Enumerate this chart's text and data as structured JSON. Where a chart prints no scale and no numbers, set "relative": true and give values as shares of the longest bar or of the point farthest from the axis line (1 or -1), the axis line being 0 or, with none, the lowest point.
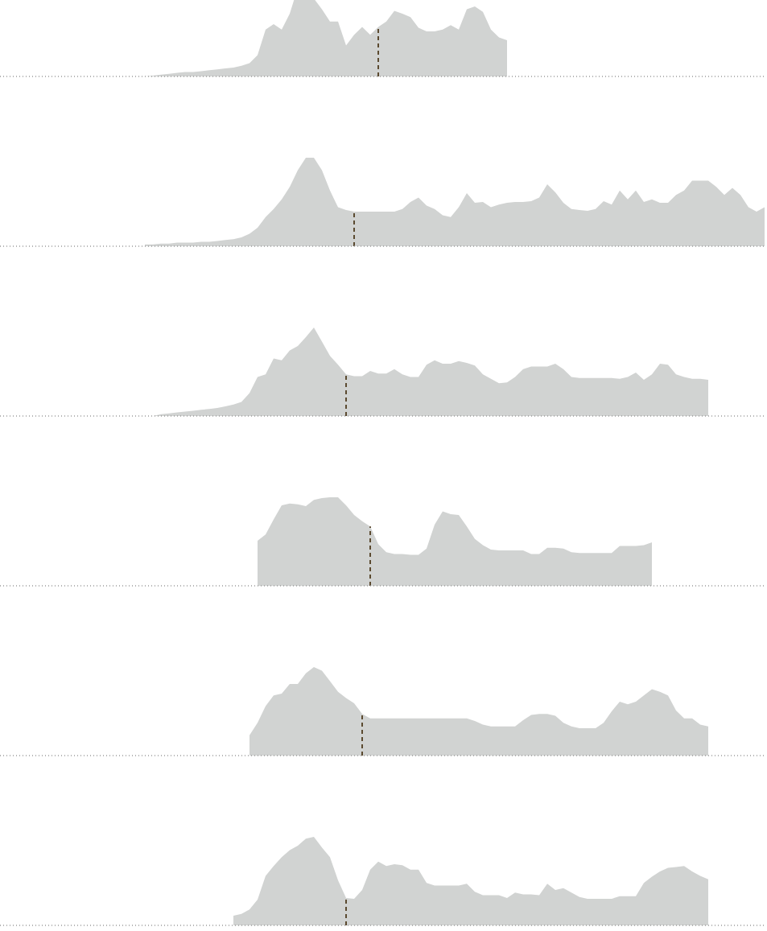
{
  "chart_data": [
    {
      "type": "area",
      "relative": true,
      "categories": [
        null,
        null,
        null,
        null,
        null,
        null,
        null,
        null,
        null,
        null,
        null,
        null,
        null,
        null,
        null,
        null,
        null,
        null,
        null,
        null,
        null,
        null,
        null,
        null,
        null,
        null,
        null,
        null,
        null,
        null,
        null,
        null,
        null,
        null,
        null,
        null,
        null,
        null,
        null,
        null,
        null,
        null,
        null,
        null,
        null,
        null,
        null,
        null,
        null,
        null,
        null,
        null,
        null,
        null,
        null,
        null,
        null,
        null,
        null,
        null,
        null,
        null,
        null,
        null,
        null,
        null,
        null,
        null,
        null,
        null,
        null,
        null,
        null,
        null,
        null,
        null,
        null,
        null,
        null,
        null,
        null,
        null,
        null,
        null,
        null,
        null,
        null,
        null,
        null,
        null,
        null,
        null,
        null,
        null,
        null,
        null
      ],
      "series": [
        {
          "color": "#d1d3d2",
          "values": [
            null,
            null,
            null,
            null,
            null,
            null,
            null,
            null,
            null,
            null,
            null,
            null,
            null,
            null,
            null,
            null,
            null,
            null,
            0,
            0.01,
            0.02,
            0.03,
            0.04,
            0.05,
            0.05,
            0.06,
            0.07,
            0.08,
            0.09,
            0.1,
            0.12,
            0.15,
            0.24,
            0.53,
            0.59,
            0.53,
            0.71,
            1,
            0.94,
            0.88,
            0.76,
            0.62,
            0.62,
            0.35,
            0.47,
            0.56,
            0.47,
            0.56,
            null,
            null,
            null,
            null,
            null,
            null,
            null,
            null,
            null,
            null,
            null,
            null,
            null,
            null,
            null,
            null,
            null,
            null,
            null,
            null,
            null,
            null,
            null,
            null,
            null,
            null,
            null,
            null,
            null,
            null,
            null,
            null,
            null,
            null,
            null,
            null,
            null,
            null,
            null,
            null,
            null,
            null,
            null,
            null,
            null,
            null,
            null,
            null
          ]
        },
        {
          "color": "#d1d3d2",
          "values": [
            null,
            null,
            null,
            null,
            null,
            null,
            null,
            null,
            null,
            null,
            null,
            null,
            null,
            null,
            null,
            null,
            null,
            null,
            null,
            null,
            null,
            null,
            null,
            null,
            null,
            null,
            null,
            null,
            null,
            null,
            null,
            null,
            null,
            null,
            null,
            null,
            null,
            null,
            null,
            null,
            null,
            null,
            null,
            null,
            null,
            null,
            null,
            0.56,
            0.62,
            0.74,
            0.71,
            0.67,
            0.55,
            0.51,
            0.51,
            0.53,
            0.58,
            0.53,
            0.76,
            0.79,
            0.73,
            0.53,
            0.44,
            0.41,
            null,
            null,
            null,
            null,
            null,
            null,
            null,
            null,
            null,
            null,
            null,
            null,
            null,
            null,
            null,
            null,
            null,
            null,
            null,
            null,
            null,
            null,
            null,
            null,
            null,
            null,
            null,
            null,
            null,
            null,
            null,
            null
          ]
        }
      ]
    },
    {
      "type": "area",
      "relative": true,
      "categories": [
        null,
        null,
        null,
        null,
        null,
        null,
        null,
        null,
        null,
        null,
        null,
        null,
        null,
        null,
        null,
        null,
        null,
        null,
        null,
        null,
        null,
        null,
        null,
        null,
        null,
        null,
        null,
        null,
        null,
        null,
        null,
        null,
        null,
        null,
        null,
        null,
        null,
        null,
        null,
        null,
        null,
        null,
        null,
        null,
        null,
        null,
        null,
        null,
        null,
        null,
        null,
        null,
        null,
        null,
        null,
        null,
        null,
        null,
        null,
        null,
        null,
        null,
        null,
        null,
        null,
        null,
        null,
        null,
        null,
        null,
        null,
        null,
        null,
        null,
        null,
        null,
        null,
        null,
        null,
        null,
        null,
        null,
        null,
        null,
        null,
        null,
        null,
        null,
        null,
        null,
        null,
        null,
        null,
        null,
        null,
        null
      ],
      "series": [
        {
          "color": "#d1d3d2",
          "values": [
            null,
            null,
            null,
            null,
            null,
            null,
            null,
            null,
            null,
            null,
            null,
            null,
            null,
            null,
            null,
            null,
            null,
            null,
            0.02,
            0.02,
            0.03,
            0.03,
            0.04,
            0.04,
            0.04,
            0.05,
            0.05,
            0.06,
            0.07,
            0.08,
            0.1,
            0.14,
            0.21,
            0.33,
            0.42,
            0.53,
            0.67,
            0.86,
            1,
            1,
            0.86,
            0.63,
            0.44,
            0.41,
            0.39,
            null,
            null,
            null,
            null,
            null,
            null,
            null,
            null,
            null,
            null,
            null,
            null,
            null,
            null,
            null,
            null,
            null,
            null,
            null,
            null,
            null,
            null,
            null,
            null,
            null,
            null,
            null,
            null,
            null,
            null,
            null,
            null,
            null,
            null,
            null,
            null,
            null,
            null,
            null,
            null,
            null,
            null,
            null,
            null,
            null,
            null,
            null,
            null,
            null,
            null,
            null
          ]
        },
        {
          "color": "#d1d3d2",
          "values": [
            null,
            null,
            null,
            null,
            null,
            null,
            null,
            null,
            null,
            null,
            null,
            null,
            null,
            null,
            null,
            null,
            null,
            null,
            null,
            null,
            null,
            null,
            null,
            null,
            null,
            null,
            null,
            null,
            null,
            null,
            null,
            null,
            null,
            null,
            null,
            null,
            null,
            null,
            null,
            null,
            null,
            null,
            null,
            null,
            0.39,
            0.39,
            0.39,
            0.39,
            0.39,
            0.39,
            0.42,
            0.5,
            0.55,
            0.46,
            0.42,
            0.35,
            0.33,
            0.44,
            0.6,
            0.49,
            0.5,
            0.44,
            0.47,
            0.49,
            0.5,
            0.5,
            0.51,
            0.55,
            0.7,
            0.61,
            0.49,
            0.42,
            0.41,
            0.4,
            0.42,
            0.51,
            0.47,
            0.63,
            0.53,
            0.63,
            0.5,
            0.53,
            0.49,
            0.49,
            0.58,
            0.63,
            0.74,
            0.74,
            0.74,
            0.67,
            0.58,
            0.66,
            0.58,
            0.44,
            0.39,
            0.44
          ]
        }
      ]
    },
    {
      "type": "area",
      "relative": true,
      "categories": [
        null,
        null,
        null,
        null,
        null,
        null,
        null,
        null,
        null,
        null,
        null,
        null,
        null,
        null,
        null,
        null,
        null,
        null,
        null,
        null,
        null,
        null,
        null,
        null,
        null,
        null,
        null,
        null,
        null,
        null,
        null,
        null,
        null,
        null,
        null,
        null,
        null,
        null,
        null,
        null,
        null,
        null,
        null,
        null,
        null,
        null,
        null,
        null,
        null,
        null,
        null,
        null,
        null,
        null,
        null,
        null,
        null,
        null,
        null,
        null,
        null,
        null,
        null,
        null,
        null,
        null,
        null,
        null,
        null,
        null,
        null,
        null,
        null,
        null,
        null,
        null,
        null,
        null,
        null,
        null,
        null,
        null,
        null,
        null,
        null,
        null,
        null,
        null,
        null,
        null,
        null,
        null,
        null,
        null,
        null,
        null
      ],
      "series": [
        {
          "color": "#d1d3d2",
          "values": [
            null,
            null,
            null,
            null,
            null,
            null,
            null,
            null,
            null,
            null,
            null,
            null,
            null,
            null,
            null,
            null,
            null,
            null,
            null,
            0,
            0.02,
            0.03,
            0.04,
            0.05,
            0.06,
            0.07,
            0.08,
            0.09,
            0.11,
            0.13,
            0.16,
            0.26,
            0.44,
            0.47,
            0.65,
            0.63,
            0.74,
            0.79,
            0.89,
            1,
            0.84,
            0.68,
            0.58,
            0.47,
            null,
            null,
            null,
            null,
            null,
            null,
            null,
            null,
            null,
            null,
            null,
            null,
            null,
            null,
            null,
            null,
            null,
            null,
            null,
            null,
            null,
            null,
            null,
            null,
            null,
            null,
            null,
            null,
            null,
            null,
            null,
            null,
            null,
            null,
            null,
            null,
            null,
            null,
            null,
            null,
            null,
            null,
            null,
            null,
            null,
            null,
            null,
            null,
            null,
            null,
            null,
            null
          ]
        },
        {
          "color": "#d1d3d2",
          "values": [
            null,
            null,
            null,
            null,
            null,
            null,
            null,
            null,
            null,
            null,
            null,
            null,
            null,
            null,
            null,
            null,
            null,
            null,
            null,
            null,
            null,
            null,
            null,
            null,
            null,
            null,
            null,
            null,
            null,
            null,
            null,
            null,
            null,
            null,
            null,
            null,
            null,
            null,
            null,
            null,
            null,
            null,
            null,
            0.47,
            0.45,
            0.45,
            0.51,
            0.48,
            0.48,
            0.53,
            0.47,
            0.44,
            0.44,
            0.58,
            0.63,
            0.59,
            0.59,
            0.62,
            0.6,
            0.57,
            0.47,
            0.42,
            0.37,
            0.38,
            0.44,
            0.53,
            0.56,
            0.56,
            0.56,
            0.59,
            0.53,
            0.44,
            0.43,
            0.43,
            0.43,
            0.43,
            0.43,
            0.42,
            0.44,
            0.49,
            0.41,
            0.47,
            0.59,
            0.58,
            0.47,
            0.44,
            0.42,
            0.42,
            0.41,
            null,
            null,
            null,
            null,
            null,
            null,
            null
          ]
        }
      ]
    },
    {
      "type": "area",
      "relative": true,
      "categories": [
        null,
        null,
        null,
        null,
        null,
        null,
        null,
        null,
        null,
        null,
        null,
        null,
        null,
        null,
        null,
        null,
        null,
        null,
        null,
        null,
        null,
        null,
        null,
        null,
        null,
        null,
        null,
        null,
        null,
        null,
        null,
        null,
        null,
        null,
        null,
        null,
        null,
        null,
        null,
        null,
        null,
        null,
        null,
        null,
        null,
        null,
        null,
        null,
        null,
        null,
        null,
        null,
        null,
        null,
        null,
        null,
        null,
        null,
        null,
        null,
        null,
        null,
        null,
        null,
        null,
        null,
        null,
        null,
        null,
        null,
        null,
        null,
        null,
        null,
        null,
        null,
        null,
        null,
        null,
        null,
        null,
        null,
        null,
        null,
        null,
        null,
        null,
        null,
        null,
        null,
        null,
        null,
        null,
        null,
        null,
        null
      ],
      "series": [
        {
          "color": "#d1d3d2",
          "values": [
            null,
            null,
            null,
            null,
            null,
            null,
            null,
            null,
            null,
            null,
            null,
            null,
            null,
            null,
            null,
            null,
            null,
            null,
            null,
            null,
            null,
            null,
            null,
            null,
            null,
            null,
            null,
            null,
            null,
            null,
            null,
            null,
            0.51,
            0.58,
            0.75,
            0.91,
            0.93,
            0.92,
            0.9,
            0.97,
            0.99,
            1,
            1,
            0.91,
            0.8,
            0.73,
            0.67,
            null,
            null,
            null,
            null,
            null,
            null,
            null,
            null,
            null,
            null,
            null,
            null,
            null,
            null,
            null,
            null,
            null,
            null,
            null,
            null,
            null,
            null,
            null,
            null,
            null,
            null,
            null,
            null,
            null,
            null,
            null,
            null,
            null,
            null,
            null,
            null,
            null,
            null,
            null,
            null,
            null,
            null,
            null,
            null,
            null,
            null,
            null,
            null,
            null
          ]
        },
        {
          "color": "#d1d3d2",
          "values": [
            null,
            null,
            null,
            null,
            null,
            null,
            null,
            null,
            null,
            null,
            null,
            null,
            null,
            null,
            null,
            null,
            null,
            null,
            null,
            null,
            null,
            null,
            null,
            null,
            null,
            null,
            null,
            null,
            null,
            null,
            null,
            null,
            null,
            null,
            null,
            null,
            null,
            null,
            null,
            null,
            null,
            null,
            null,
            null,
            null,
            null,
            0.67,
            0.47,
            0.38,
            0.36,
            0.36,
            0.35,
            0.35,
            0.42,
            0.69,
            0.84,
            0.81,
            0.8,
            0.67,
            0.53,
            0.46,
            0.41,
            0.4,
            0.4,
            0.4,
            0.4,
            0.36,
            0.36,
            0.43,
            0.43,
            0.42,
            0.38,
            0.37,
            0.37,
            0.37,
            0.37,
            0.37,
            0.45,
            0.45,
            0.45,
            0.46,
            0.49,
            null,
            null,
            null,
            null,
            null,
            null,
            null,
            null,
            null,
            null,
            null,
            null,
            null,
            null
          ]
        }
      ]
    },
    {
      "type": "area",
      "relative": true,
      "categories": [
        null,
        null,
        null,
        null,
        null,
        null,
        null,
        null,
        null,
        null,
        null,
        null,
        null,
        null,
        null,
        null,
        null,
        null,
        null,
        null,
        null,
        null,
        null,
        null,
        null,
        null,
        null,
        null,
        null,
        null,
        null,
        null,
        null,
        null,
        null,
        null,
        null,
        null,
        null,
        null,
        null,
        null,
        null,
        null,
        null,
        null,
        null,
        null,
        null,
        null,
        null,
        null,
        null,
        null,
        null,
        null,
        null,
        null,
        null,
        null,
        null,
        null,
        null,
        null,
        null,
        null,
        null,
        null,
        null,
        null,
        null,
        null,
        null,
        null,
        null,
        null,
        null,
        null,
        null,
        null,
        null,
        null,
        null,
        null,
        null,
        null,
        null,
        null,
        null,
        null,
        null,
        null,
        null,
        null,
        null,
        null
      ],
      "series": [
        {
          "color": "#d1d3d2",
          "values": [
            null,
            null,
            null,
            null,
            null,
            null,
            null,
            null,
            null,
            null,
            null,
            null,
            null,
            null,
            null,
            null,
            null,
            null,
            null,
            null,
            null,
            null,
            null,
            null,
            null,
            null,
            null,
            null,
            null,
            null,
            null,
            0.23,
            0.37,
            0.56,
            0.68,
            0.7,
            0.81,
            0.81,
            0.93,
            1,
            0.96,
            0.84,
            0.72,
            0.65,
            0.59,
            0.47,
            null,
            null,
            null,
            null,
            null,
            null,
            null,
            null,
            null,
            null,
            null,
            null,
            null,
            null,
            null,
            null,
            null,
            null,
            null,
            null,
            null,
            null,
            null,
            null,
            null,
            null,
            null,
            null,
            null,
            null,
            null,
            null,
            null,
            null,
            null,
            null,
            null,
            null,
            null,
            null,
            null,
            null,
            null,
            null,
            null,
            null,
            null,
            null,
            null,
            null
          ]
        },
        {
          "color": "#d1d3d2",
          "values": [
            null,
            null,
            null,
            null,
            null,
            null,
            null,
            null,
            null,
            null,
            null,
            null,
            null,
            null,
            null,
            null,
            null,
            null,
            null,
            null,
            null,
            null,
            null,
            null,
            null,
            null,
            null,
            null,
            null,
            null,
            null,
            null,
            null,
            null,
            null,
            null,
            null,
            null,
            null,
            null,
            null,
            null,
            null,
            null,
            null,
            0.47,
            0.42,
            0.42,
            0.42,
            0.42,
            0.42,
            0.42,
            0.42,
            0.42,
            0.42,
            0.42,
            0.42,
            0.42,
            0.42,
            0.39,
            0.35,
            0.33,
            0.33,
            0.33,
            0.33,
            0.4,
            0.46,
            0.47,
            0.47,
            0.45,
            0.37,
            0.33,
            0.31,
            0.31,
            0.31,
            0.37,
            0.5,
            0.61,
            0.58,
            0.61,
            0.68,
            0.75,
            0.72,
            0.68,
            0.51,
            0.42,
            0.42,
            0.35,
            0.33,
            null,
            null,
            null,
            null,
            null,
            null,
            null
          ]
        }
      ]
    },
    {
      "type": "area",
      "relative": true,
      "categories": [
        null,
        null,
        null,
        null,
        null,
        null,
        null,
        null,
        null,
        null,
        null,
        null,
        null,
        null,
        null,
        null,
        null,
        null,
        null,
        null,
        null,
        null,
        null,
        null,
        null,
        null,
        null,
        null,
        null,
        null,
        null,
        null,
        null,
        null,
        null,
        null,
        null,
        null,
        null,
        null,
        null,
        null,
        null,
        null,
        null,
        null,
        null,
        null,
        null,
        null,
        null,
        null,
        null,
        null,
        null,
        null,
        null,
        null,
        null,
        null,
        null,
        null,
        null,
        null,
        null,
        null,
        null,
        null,
        null,
        null,
        null,
        null,
        null,
        null,
        null,
        null,
        null,
        null,
        null,
        null,
        null,
        null,
        null,
        null,
        null,
        null,
        null,
        null,
        null,
        null,
        null,
        null,
        null,
        null,
        null,
        null
      ],
      "series": [
        {
          "color": "#d1d3d2",
          "values": [
            null,
            null,
            null,
            null,
            null,
            null,
            null,
            null,
            null,
            null,
            null,
            null,
            null,
            null,
            null,
            null,
            null,
            null,
            null,
            null,
            null,
            null,
            null,
            null,
            null,
            null,
            null,
            null,
            null,
            0.11,
            0.13,
            0.18,
            0.29,
            0.56,
            0.67,
            0.77,
            0.85,
            0.9,
            0.98,
            1,
            0.88,
            0.77,
            0.51,
            0.31,
            null,
            null,
            null,
            null,
            null,
            null,
            null,
            null,
            null,
            null,
            null,
            null,
            null,
            null,
            null,
            null,
            null,
            null,
            null,
            null,
            null,
            null,
            null,
            null,
            null,
            null,
            null,
            null,
            null,
            null,
            null,
            null,
            null,
            null,
            null,
            null,
            null,
            null,
            null,
            null,
            null,
            null,
            null,
            null,
            null,
            null,
            null,
            null,
            null,
            null,
            null,
            null
          ]
        },
        {
          "color": "#d1d3d2",
          "values": [
            null,
            null,
            null,
            null,
            null,
            null,
            null,
            null,
            null,
            null,
            null,
            null,
            null,
            null,
            null,
            null,
            null,
            null,
            null,
            null,
            null,
            null,
            null,
            null,
            null,
            null,
            null,
            null,
            null,
            null,
            null,
            null,
            null,
            null,
            null,
            null,
            null,
            null,
            null,
            null,
            null,
            null,
            null,
            0.31,
            0.3,
            0.4,
            0.63,
            0.72,
            0.67,
            0.69,
            0.68,
            0.63,
            0.63,
            0.48,
            0.45,
            0.45,
            0.45,
            0.45,
            0.47,
            0.38,
            0.34,
            0.34,
            0.34,
            0.31,
            0.37,
            0.35,
            0.35,
            0.34,
            0.47,
            0.4,
            0.42,
            0.37,
            0.32,
            0.3,
            0.3,
            0.3,
            0.3,
            0.33,
            0.33,
            0.33,
            0.48,
            0.55,
            0.61,
            0.65,
            0.66,
            0.67,
            0.61,
            0.56,
            0.52,
            null,
            null,
            null,
            null,
            null,
            null,
            null
          ]
        }
      ]
    }
  ]
}
